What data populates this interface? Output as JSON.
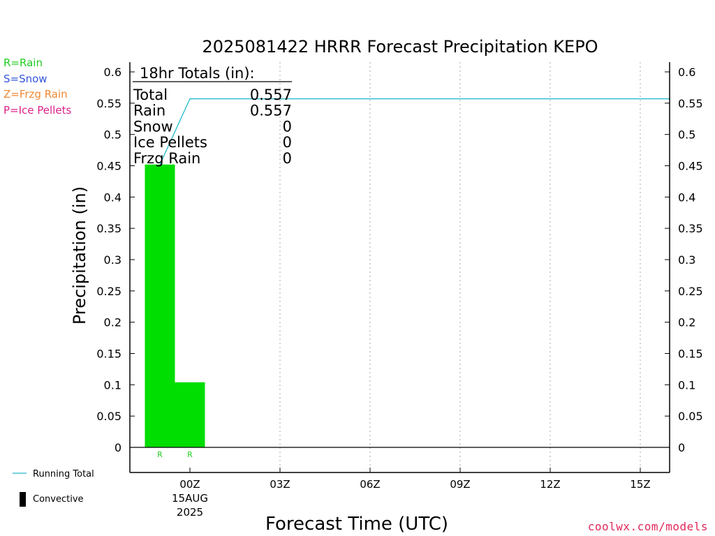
{
  "chart_data": {
    "type": "bar",
    "title": "2025081422 HRRR Forecast Precipitation KEPO",
    "xlabel": "Forecast Time (UTC)",
    "ylabel": "Precipitation (in)",
    "ylim": [
      0,
      0.6
    ],
    "y_ticks": [
      "0",
      "0.05",
      "0.1",
      "0.15",
      "0.2",
      "0.25",
      "0.3",
      "0.35",
      "0.4",
      "0.45",
      "0.5",
      "0.55",
      "0.6"
    ],
    "x_ticks": [
      {
        "hour": 0,
        "label": "00Z",
        "sub": "15AUG",
        "sub2": "2025"
      },
      {
        "hour": 3,
        "label": "03Z"
      },
      {
        "hour": 6,
        "label": "06Z"
      },
      {
        "hour": 9,
        "label": "09Z"
      },
      {
        "hour": 12,
        "label": "12Z"
      },
      {
        "hour": 15,
        "label": "15Z"
      }
    ],
    "xlim_hours": [
      -2,
      16
    ],
    "bars": [
      {
        "start_hour": -1.5,
        "end_hour": -0.5,
        "value": 0.452,
        "type": "R"
      },
      {
        "start_hour": -0.5,
        "end_hour": 0.5,
        "value": 0.104,
        "type": "R"
      }
    ],
    "running_total": {
      "name": "Running Total",
      "points": [
        [
          -1,
          0.452
        ],
        [
          0,
          0.557
        ],
        [
          16,
          0.557
        ]
      ]
    },
    "totals_box": {
      "header": "18hr Totals (in):",
      "rows": [
        {
          "label": "Total",
          "value": "0.557"
        },
        {
          "label": "Rain",
          "value": "0.557"
        },
        {
          "label": "Snow",
          "value": "0"
        },
        {
          "label": "Ice Pellets",
          "value": "0"
        },
        {
          "label": "Frzg Rain",
          "value": "0"
        }
      ]
    },
    "type_legend": [
      {
        "text": "R=Rain",
        "color": "#22cc22"
      },
      {
        "text": "S=Snow",
        "color": "#3355dd"
      },
      {
        "text": "Z=Frzg Rain",
        "color": "#ee8833"
      },
      {
        "text": "P=Ice Pellets",
        "color": "#dd2288"
      }
    ],
    "bottom_legend": [
      {
        "text": "Running Total",
        "kind": "line",
        "color": "#22bbcc"
      },
      {
        "text": "Convective",
        "kind": "block",
        "color": "#000000"
      }
    ],
    "colors": {
      "rain_bar": "#00dd00",
      "running_total": "#22bbcc",
      "grid": "#aaaaaa"
    },
    "credit": "coolwx.com/models"
  }
}
